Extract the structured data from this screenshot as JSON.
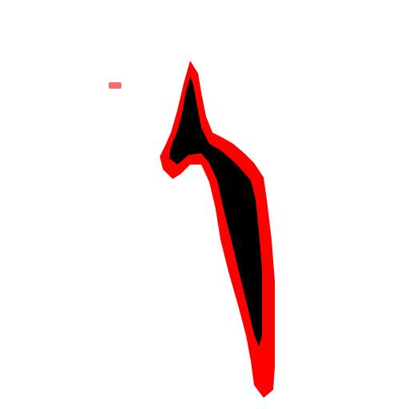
{
  "colors": {
    "background": "#ffffff",
    "glyph_fill": "#000000",
    "glyph_outline": "#ff0000",
    "speck": "#ff6b6b"
  }
}
